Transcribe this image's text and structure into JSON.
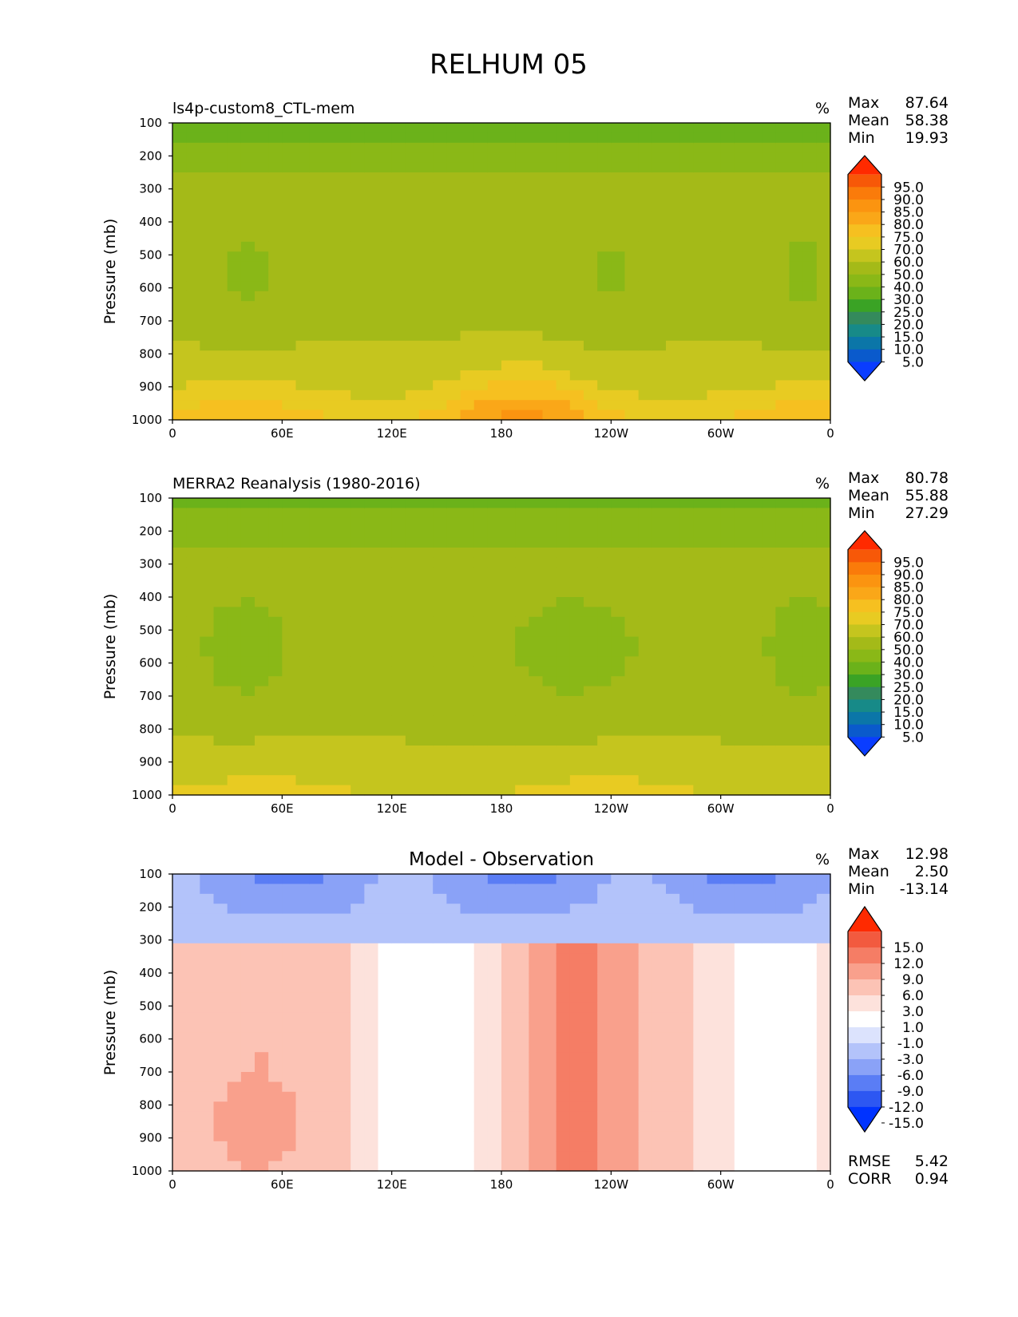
{
  "figure": {
    "title": "RELHUM 05"
  },
  "palettes": {
    "relhum": [
      "#0a3dff",
      "#0a5acc",
      "#0b76a8",
      "#178a88",
      "#348a5c",
      "#3aa325",
      "#6bb21a",
      "#8ab817",
      "#a4ba18",
      "#c5c51e",
      "#e8cb22",
      "#f6c020",
      "#faa718",
      "#fb9410",
      "#fa7b0a",
      "#f75808",
      "#ff2a00"
    ],
    "diff": [
      "#0033ff",
      "#2d57f2",
      "#5a7df5",
      "#8aa2f7",
      "#b3c3fa",
      "#dce3fd",
      "#ffffff",
      "#fde2dc",
      "#fcc3b5",
      "#f9a08c",
      "#f57d65",
      "#f25a3f",
      "#ff2a00"
    ]
  },
  "panels": [
    {
      "id": "model",
      "title": "ls4p-custom8_CTL-mem",
      "unit": "%",
      "stats": [
        {
          "label": "Max",
          "value": "87.64"
        },
        {
          "label": "Mean",
          "value": "58.38"
        },
        {
          "label": "Min",
          "value": "19.93"
        }
      ],
      "colorbar_ticks": [
        "95.0",
        "90.0",
        "85.0",
        "80.0",
        "75.0",
        "70.0",
        "60.0",
        "50.0",
        "40.0",
        "30.0",
        "25.0",
        "20.0",
        "15.0",
        "10.0",
        "5.0"
      ]
    },
    {
      "id": "obs",
      "title": "MERRA2 Reanalysis (1980-2016)",
      "unit": "%",
      "stats": [
        {
          "label": "Max",
          "value": "80.78"
        },
        {
          "label": "Mean",
          "value": "55.88"
        },
        {
          "label": "Min",
          "value": "27.29"
        }
      ],
      "colorbar_ticks": [
        "95.0",
        "90.0",
        "85.0",
        "80.0",
        "75.0",
        "70.0",
        "60.0",
        "50.0",
        "40.0",
        "30.0",
        "25.0",
        "20.0",
        "15.0",
        "10.0",
        "5.0"
      ]
    },
    {
      "id": "diff",
      "title": "Model - Observation",
      "unit": "%",
      "stats": [
        {
          "label": "Max",
          "value": "12.98"
        },
        {
          "label": "Mean",
          "value": "2.50"
        },
        {
          "label": "Min",
          "value": "-13.14"
        }
      ],
      "extra_stats": [
        {
          "label": "RMSE",
          "value": "5.42"
        },
        {
          "label": "CORR",
          "value": "0.94"
        }
      ],
      "colorbar_ticks": [
        "15.0",
        "12.0",
        "9.0",
        "6.0",
        "3.0",
        "1.0",
        "-1.0",
        "-3.0",
        "-6.0",
        "-9.0",
        "-12.0",
        "-15.0"
      ]
    }
  ],
  "chart_data": [
    {
      "type": "heatmap",
      "title": "ls4p-custom8_CTL-mem",
      "ylabel": "Pressure (mb)",
      "xlabel": "",
      "x_ticks": [
        "0",
        "60E",
        "120E",
        "180",
        "120W",
        "60W",
        "0"
      ],
      "y_ticks": [
        "100",
        "200",
        "300",
        "400",
        "500",
        "600",
        "700",
        "800",
        "900",
        "1000"
      ],
      "xlim": [
        0,
        360
      ],
      "ylim": [
        100,
        1000
      ],
      "levels": [
        5,
        10,
        15,
        20,
        25,
        30,
        40,
        50,
        60,
        70,
        75,
        80,
        85,
        90,
        95
      ],
      "value_range": [
        19.93,
        87.64
      ],
      "mean": 58.38,
      "units": "%"
    },
    {
      "type": "heatmap",
      "title": "MERRA2 Reanalysis (1980-2016)",
      "ylabel": "Pressure (mb)",
      "xlabel": "",
      "x_ticks": [
        "0",
        "60E",
        "120E",
        "180",
        "120W",
        "60W",
        "0"
      ],
      "y_ticks": [
        "100",
        "200",
        "300",
        "400",
        "500",
        "600",
        "700",
        "800",
        "900",
        "1000"
      ],
      "xlim": [
        0,
        360
      ],
      "ylim": [
        100,
        1000
      ],
      "levels": [
        5,
        10,
        15,
        20,
        25,
        30,
        40,
        50,
        60,
        70,
        75,
        80,
        85,
        90,
        95
      ],
      "value_range": [
        27.29,
        80.78
      ],
      "mean": 55.88,
      "units": "%"
    },
    {
      "type": "heatmap",
      "title": "Model - Observation",
      "ylabel": "Pressure (mb)",
      "xlabel": "",
      "x_ticks": [
        "0",
        "60E",
        "120E",
        "180",
        "120W",
        "60W",
        "0"
      ],
      "y_ticks": [
        "100",
        "200",
        "300",
        "400",
        "500",
        "600",
        "700",
        "800",
        "900",
        "1000"
      ],
      "xlim": [
        0,
        360
      ],
      "ylim": [
        100,
        1000
      ],
      "levels": [
        -15,
        -12,
        -9,
        -6,
        -3,
        -1,
        1,
        3,
        6,
        9,
        12,
        15
      ],
      "value_range": [
        -13.14,
        12.98
      ],
      "mean": 2.5,
      "rmse": 5.42,
      "corr": 0.94,
      "units": "%"
    }
  ]
}
